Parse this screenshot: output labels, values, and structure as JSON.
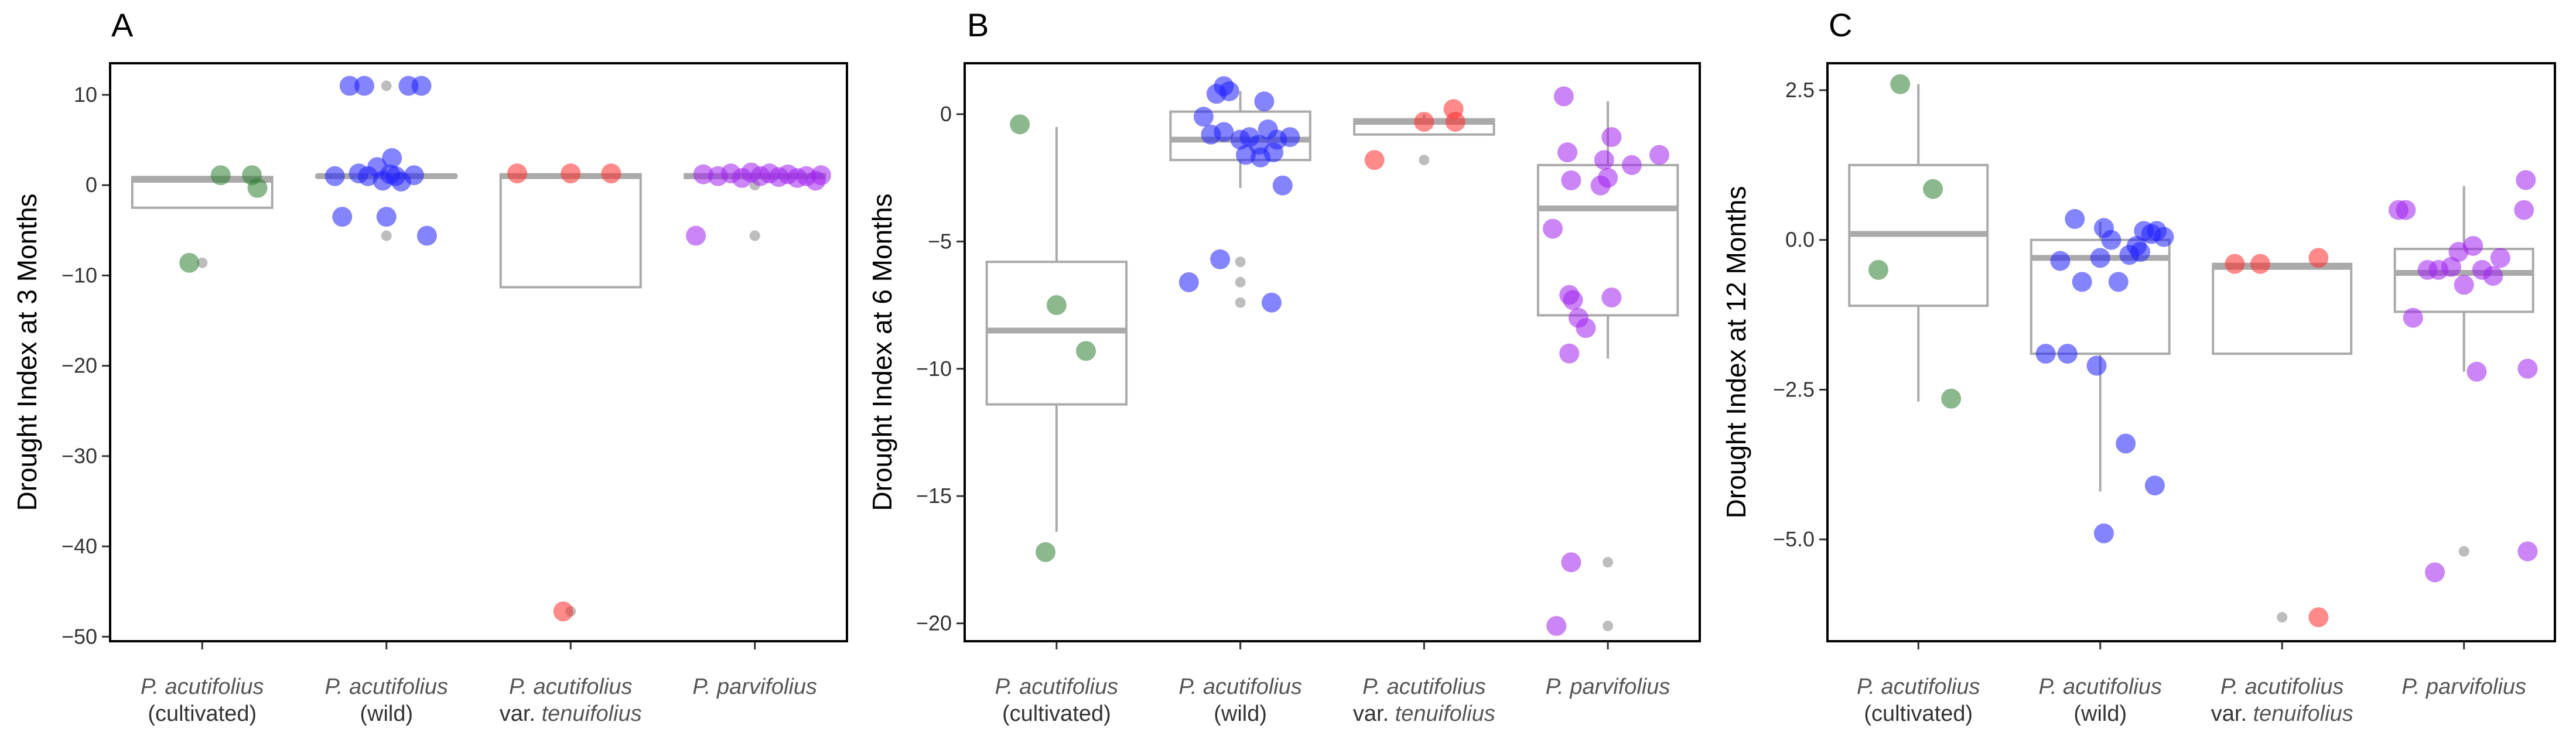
{
  "chart_data": [
    {
      "type": "boxplot-jitter",
      "panel": "A",
      "title": "",
      "xlabel": "",
      "ylabel": "Drought Index at 3 Months",
      "ylim": [
        -50.5,
        13.5
      ],
      "yticks": [
        10,
        0,
        -10,
        -20,
        -30,
        -40,
        -50
      ],
      "ytick_labels": [
        "10",
        "0",
        "−10",
        "−20",
        "−30",
        "−40",
        "−50"
      ],
      "grid": false,
      "categories": [
        {
          "main": "P. acutifolius",
          "sub": "(cultivated)",
          "sub_italic": ""
        },
        {
          "main": "P. acutifolius",
          "sub": "(wild)",
          "sub_italic": ""
        },
        {
          "main": "P. acutifolius",
          "sub": "var. ",
          "sub_italic": "tenuifolius"
        },
        {
          "main": "P. parvifolius",
          "sub": "",
          "sub_italic": ""
        }
      ],
      "boxes": [
        {
          "q1": -2.5,
          "median": 0.6,
          "q3": 0.9,
          "whisker_low": -2.5,
          "whisker_high": 0.9
        },
        {
          "q1": 0.9,
          "median": 1.0,
          "q3": 1.1,
          "whisker_low": 0.9,
          "whisker_high": 1.1
        },
        {
          "q1": -11.3,
          "median": 1.0,
          "q3": 1.2,
          "whisker_low": -11.3,
          "whisker_high": 1.2
        },
        {
          "q1": 0.8,
          "median": 1.0,
          "q3": 1.2,
          "whisker_low": 0.8,
          "whisker_high": 1.2
        }
      ],
      "outliers": [
        {
          "group": 0,
          "y": -8.6
        },
        {
          "group": 1,
          "y": 11.0
        },
        {
          "group": 1,
          "y": -5.6
        },
        {
          "group": 2,
          "y": -47.2
        },
        {
          "group": 3,
          "y": -5.6
        },
        {
          "group": 3,
          "y": 0.0
        }
      ],
      "points": [
        {
          "group": 0,
          "x_offset": 0.1,
          "y": 1.1
        },
        {
          "group": 0,
          "x_offset": 0.27,
          "y": 1.1
        },
        {
          "group": 0,
          "x_offset": 0.3,
          "y": -0.3
        },
        {
          "group": 0,
          "x_offset": -0.07,
          "y": -8.6
        },
        {
          "group": 1,
          "x_offset": -0.28,
          "y": 1.0
        },
        {
          "group": 1,
          "x_offset": -0.2,
          "y": 11.0
        },
        {
          "group": 1,
          "x_offset": -0.12,
          "y": 11.0
        },
        {
          "group": 1,
          "x_offset": -0.05,
          "y": 2.0
        },
        {
          "group": 1,
          "x_offset": -0.1,
          "y": 1.0
        },
        {
          "group": 1,
          "x_offset": -0.02,
          "y": 0.5
        },
        {
          "group": 1,
          "x_offset": 0.02,
          "y": 1.2
        },
        {
          "group": 1,
          "x_offset": 0.05,
          "y": 1.0
        },
        {
          "group": 1,
          "x_offset": 0.08,
          "y": 0.4
        },
        {
          "group": 1,
          "x_offset": 0.12,
          "y": 11.0
        },
        {
          "group": 1,
          "x_offset": 0.19,
          "y": 11.0
        },
        {
          "group": 1,
          "x_offset": 0.15,
          "y": 1.1
        },
        {
          "group": 1,
          "x_offset": 0.03,
          "y": 3.0
        },
        {
          "group": 1,
          "x_offset": -0.15,
          "y": 1.3
        },
        {
          "group": 1,
          "x_offset": -0.24,
          "y": -3.5
        },
        {
          "group": 1,
          "x_offset": 0.0,
          "y": -3.5
        },
        {
          "group": 1,
          "x_offset": 0.22,
          "y": -5.6
        },
        {
          "group": 2,
          "x_offset": -0.29,
          "y": 1.3
        },
        {
          "group": 2,
          "x_offset": 0.0,
          "y": 1.3
        },
        {
          "group": 2,
          "x_offset": 0.22,
          "y": 1.3
        },
        {
          "group": 2,
          "x_offset": -0.04,
          "y": -47.2
        },
        {
          "group": 3,
          "x_offset": -0.28,
          "y": 1.2
        },
        {
          "group": 3,
          "x_offset": -0.2,
          "y": 1.0
        },
        {
          "group": 3,
          "x_offset": -0.13,
          "y": 1.3
        },
        {
          "group": 3,
          "x_offset": -0.07,
          "y": 0.8
        },
        {
          "group": 3,
          "x_offset": -0.02,
          "y": 1.4
        },
        {
          "group": 3,
          "x_offset": 0.03,
          "y": 1.0
        },
        {
          "group": 3,
          "x_offset": 0.08,
          "y": 1.3
        },
        {
          "group": 3,
          "x_offset": 0.13,
          "y": 0.9
        },
        {
          "group": 3,
          "x_offset": 0.18,
          "y": 1.2
        },
        {
          "group": 3,
          "x_offset": 0.23,
          "y": 0.8
        },
        {
          "group": 3,
          "x_offset": 0.28,
          "y": 1.0
        },
        {
          "group": 3,
          "x_offset": 0.33,
          "y": 0.5
        },
        {
          "group": 3,
          "x_offset": 0.36,
          "y": 1.1
        },
        {
          "group": 3,
          "x_offset": -0.32,
          "y": -5.6
        }
      ]
    },
    {
      "type": "boxplot-jitter",
      "panel": "B",
      "title": "",
      "xlabel": "",
      "ylabel": "Drought Index at 6 Months",
      "ylim": [
        -20.7,
        2.0
      ],
      "yticks": [
        0,
        -5,
        -10,
        -15,
        -20
      ],
      "ytick_labels": [
        "0",
        "−5",
        "−10",
        "−15",
        "−20"
      ],
      "grid": false,
      "categories": [
        {
          "main": "P. acutifolius",
          "sub": "(cultivated)",
          "sub_italic": ""
        },
        {
          "main": "P. acutifolius",
          "sub": "(wild)",
          "sub_italic": ""
        },
        {
          "main": "P. acutifolius",
          "sub": "var. ",
          "sub_italic": "tenuifolius"
        },
        {
          "main": "P. parvifolius",
          "sub": "",
          "sub_italic": ""
        }
      ],
      "boxes": [
        {
          "q1": -11.4,
          "median": -8.5,
          "q3": -5.8,
          "whisker_low": -16.4,
          "whisker_high": -0.5
        },
        {
          "q1": -1.8,
          "median": -1.0,
          "q3": 0.1,
          "whisker_low": -2.9,
          "whisker_high": 0.9
        },
        {
          "q1": -0.8,
          "median": -0.3,
          "q3": -0.2,
          "whisker_low": -0.8,
          "whisker_high": 0.0
        },
        {
          "q1": -7.9,
          "median": -3.7,
          "q3": -2.0,
          "whisker_low": -9.6,
          "whisker_high": 0.5
        }
      ],
      "outliers": [
        {
          "group": 1,
          "y": -5.8
        },
        {
          "group": 1,
          "y": -6.6
        },
        {
          "group": 1,
          "y": -7.4
        },
        {
          "group": 2,
          "y": -1.8
        },
        {
          "group": 3,
          "y": -17.6
        },
        {
          "group": 3,
          "y": -20.1
        }
      ],
      "points": [
        {
          "group": 0,
          "x_offset": -0.2,
          "y": -0.4
        },
        {
          "group": 0,
          "x_offset": 0.0,
          "y": -7.5
        },
        {
          "group": 0,
          "x_offset": 0.16,
          "y": -9.3
        },
        {
          "group": 0,
          "x_offset": -0.06,
          "y": -17.2
        },
        {
          "group": 1,
          "x_offset": -0.28,
          "y": -6.6
        },
        {
          "group": 1,
          "x_offset": -0.11,
          "y": -5.7
        },
        {
          "group": 1,
          "x_offset": 0.17,
          "y": -7.4
        },
        {
          "group": 1,
          "x_offset": -0.2,
          "y": -0.1
        },
        {
          "group": 1,
          "x_offset": -0.13,
          "y": 0.8
        },
        {
          "group": 1,
          "x_offset": -0.06,
          "y": 0.9
        },
        {
          "group": 1,
          "x_offset": -0.09,
          "y": 1.1
        },
        {
          "group": 1,
          "x_offset": 0.13,
          "y": 0.5
        },
        {
          "group": 1,
          "x_offset": -0.16,
          "y": -0.8
        },
        {
          "group": 1,
          "x_offset": -0.09,
          "y": -0.7
        },
        {
          "group": 1,
          "x_offset": 0.0,
          "y": -1.0
        },
        {
          "group": 1,
          "x_offset": 0.05,
          "y": -0.9
        },
        {
          "group": 1,
          "x_offset": 0.1,
          "y": -1.2
        },
        {
          "group": 1,
          "x_offset": 0.15,
          "y": -0.6
        },
        {
          "group": 1,
          "x_offset": 0.2,
          "y": -1.0
        },
        {
          "group": 1,
          "x_offset": 0.27,
          "y": -0.9
        },
        {
          "group": 1,
          "x_offset": 0.23,
          "y": -2.8
        },
        {
          "group": 1,
          "x_offset": 0.11,
          "y": -1.7
        },
        {
          "group": 1,
          "x_offset": 0.03,
          "y": -1.6
        },
        {
          "group": 1,
          "x_offset": 0.18,
          "y": -1.5
        },
        {
          "group": 2,
          "x_offset": -0.27,
          "y": -1.8
        },
        {
          "group": 2,
          "x_offset": 0.0,
          "y": -0.3
        },
        {
          "group": 2,
          "x_offset": 0.16,
          "y": 0.2
        },
        {
          "group": 2,
          "x_offset": 0.17,
          "y": -0.3
        },
        {
          "group": 3,
          "x_offset": -0.3,
          "y": -4.5
        },
        {
          "group": 3,
          "x_offset": -0.24,
          "y": 0.7
        },
        {
          "group": 3,
          "x_offset": -0.22,
          "y": -1.5
        },
        {
          "group": 3,
          "x_offset": -0.2,
          "y": -2.6
        },
        {
          "group": 3,
          "x_offset": -0.21,
          "y": -7.1
        },
        {
          "group": 3,
          "x_offset": -0.19,
          "y": -7.3
        },
        {
          "group": 3,
          "x_offset": -0.16,
          "y": -8.0
        },
        {
          "group": 3,
          "x_offset": -0.21,
          "y": -9.4
        },
        {
          "group": 3,
          "x_offset": -0.12,
          "y": -8.4
        },
        {
          "group": 3,
          "x_offset": -0.2,
          "y": -17.6
        },
        {
          "group": 3,
          "x_offset": -0.28,
          "y": -20.1
        },
        {
          "group": 3,
          "x_offset": -0.02,
          "y": -1.8
        },
        {
          "group": 3,
          "x_offset": -0.04,
          "y": -2.8
        },
        {
          "group": 3,
          "x_offset": 0.0,
          "y": -2.5
        },
        {
          "group": 3,
          "x_offset": 0.02,
          "y": -0.9
        },
        {
          "group": 3,
          "x_offset": 0.02,
          "y": -7.2
        },
        {
          "group": 3,
          "x_offset": 0.13,
          "y": -2.0
        },
        {
          "group": 3,
          "x_offset": 0.28,
          "y": -1.6
        }
      ]
    },
    {
      "type": "boxplot-jitter",
      "panel": "C",
      "title": "",
      "xlabel": "",
      "ylabel": "Drought Index at 12 Months",
      "ylim": [
        -6.7,
        2.95
      ],
      "yticks": [
        2.5,
        0.0,
        -2.5,
        -5.0
      ],
      "ytick_labels": [
        "2.5",
        "0.0",
        "−2.5",
        "−5.0"
      ],
      "grid": false,
      "categories": [
        {
          "main": "P. acutifolius",
          "sub": "(cultivated)",
          "sub_italic": ""
        },
        {
          "main": "P. acutifolius",
          "sub": "(wild)",
          "sub_italic": ""
        },
        {
          "main": "P. acutifolius",
          "sub": "var. ",
          "sub_italic": "tenuifolius"
        },
        {
          "main": "P. parvifolius",
          "sub": "",
          "sub_italic": ""
        }
      ],
      "boxes": [
        {
          "q1": -1.1,
          "median": 0.1,
          "q3": 1.25,
          "whisker_low": -2.7,
          "whisker_high": 2.6
        },
        {
          "q1": -1.9,
          "median": -0.3,
          "q3": 0.0,
          "whisker_low": -4.2,
          "whisker_high": 0.3
        },
        {
          "q1": -1.9,
          "median": -0.45,
          "q3": -0.4,
          "whisker_low": -1.9,
          "whisker_high": -0.4
        },
        {
          "q1": -1.2,
          "median": -0.55,
          "q3": -0.15,
          "whisker_low": -2.2,
          "whisker_high": 0.9
        }
      ],
      "outliers": [
        {
          "group": 2,
          "y": -6.3
        },
        {
          "group": 3,
          "y": -5.2
        }
      ],
      "points": [
        {
          "group": 0,
          "x_offset": -0.1,
          "y": 2.6
        },
        {
          "group": 0,
          "x_offset": 0.08,
          "y": 0.85
        },
        {
          "group": 0,
          "x_offset": -0.22,
          "y": -0.5
        },
        {
          "group": 0,
          "x_offset": 0.18,
          "y": -2.65
        },
        {
          "group": 1,
          "x_offset": -0.3,
          "y": -1.9
        },
        {
          "group": 1,
          "x_offset": -0.18,
          "y": -1.9
        },
        {
          "group": 1,
          "x_offset": -0.22,
          "y": -0.35
        },
        {
          "group": 1,
          "x_offset": -0.14,
          "y": 0.35
        },
        {
          "group": 1,
          "x_offset": -0.1,
          "y": -0.7
        },
        {
          "group": 1,
          "x_offset": -0.02,
          "y": -2.1
        },
        {
          "group": 1,
          "x_offset": 0.02,
          "y": 0.2
        },
        {
          "group": 1,
          "x_offset": 0.0,
          "y": -0.3
        },
        {
          "group": 1,
          "x_offset": 0.06,
          "y": 0.0
        },
        {
          "group": 1,
          "x_offset": 0.1,
          "y": -0.7
        },
        {
          "group": 1,
          "x_offset": 0.16,
          "y": -0.25
        },
        {
          "group": 1,
          "x_offset": 0.2,
          "y": -0.1
        },
        {
          "group": 1,
          "x_offset": 0.24,
          "y": 0.15
        },
        {
          "group": 1,
          "x_offset": 0.28,
          "y": 0.1
        },
        {
          "group": 1,
          "x_offset": 0.31,
          "y": 0.15
        },
        {
          "group": 1,
          "x_offset": 0.35,
          "y": 0.05
        },
        {
          "group": 1,
          "x_offset": 0.14,
          "y": -3.4
        },
        {
          "group": 1,
          "x_offset": 0.3,
          "y": -4.1
        },
        {
          "group": 1,
          "x_offset": 0.02,
          "y": -4.9
        },
        {
          "group": 1,
          "x_offset": 0.22,
          "y": -0.2
        },
        {
          "group": 2,
          "x_offset": -0.26,
          "y": -0.4
        },
        {
          "group": 2,
          "x_offset": -0.12,
          "y": -0.4
        },
        {
          "group": 2,
          "x_offset": 0.2,
          "y": -0.3
        },
        {
          "group": 2,
          "x_offset": 0.2,
          "y": -6.3
        },
        {
          "group": 3,
          "x_offset": -0.36,
          "y": 0.5
        },
        {
          "group": 3,
          "x_offset": -0.32,
          "y": 0.5
        },
        {
          "group": 3,
          "x_offset": -0.28,
          "y": -1.3
        },
        {
          "group": 3,
          "x_offset": -0.2,
          "y": -0.5
        },
        {
          "group": 3,
          "x_offset": -0.14,
          "y": -0.5
        },
        {
          "group": 3,
          "x_offset": -0.07,
          "y": -0.45
        },
        {
          "group": 3,
          "x_offset": -0.03,
          "y": -0.2
        },
        {
          "group": 3,
          "x_offset": 0.0,
          "y": -0.75
        },
        {
          "group": 3,
          "x_offset": 0.05,
          "y": -0.1
        },
        {
          "group": 3,
          "x_offset": 0.1,
          "y": -0.5
        },
        {
          "group": 3,
          "x_offset": 0.16,
          "y": -0.6
        },
        {
          "group": 3,
          "x_offset": 0.2,
          "y": -0.3
        },
        {
          "group": 3,
          "x_offset": 0.07,
          "y": -2.2
        },
        {
          "group": 3,
          "x_offset": 0.35,
          "y": -2.15
        },
        {
          "group": 3,
          "x_offset": 0.34,
          "y": 1.0
        },
        {
          "group": 3,
          "x_offset": 0.33,
          "y": 0.5
        },
        {
          "group": 3,
          "x_offset": -0.16,
          "y": -5.55
        },
        {
          "group": 3,
          "x_offset": 0.35,
          "y": -5.2
        }
      ]
    }
  ],
  "group_colors": [
    "#2e7d32",
    "#1f1fff",
    "#ff2a2a",
    "#a020f0"
  ],
  "box_color": "#aaaaaa",
  "outlier_color": "#bdbdbd"
}
